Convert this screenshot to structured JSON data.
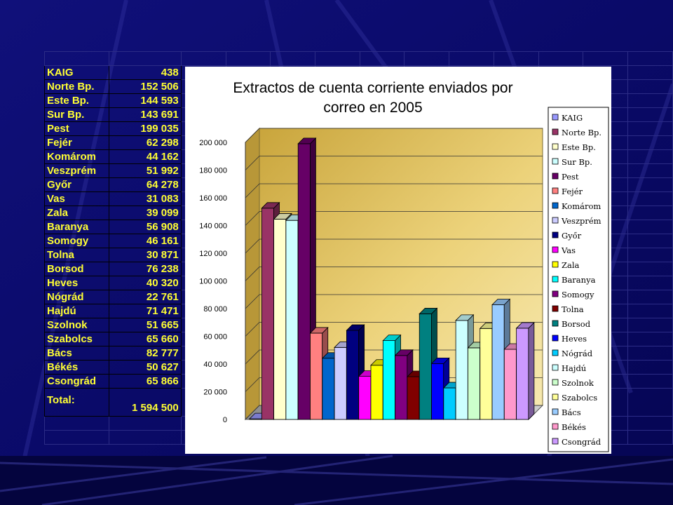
{
  "colors": {
    "background": "#06065e",
    "table_text": "#ffff33",
    "plot_wall": "#e8c95a"
  },
  "table": {
    "rows": [
      {
        "name": "KAIG",
        "value": "438"
      },
      {
        "name": "Norte  Bp.",
        "value": "152 506"
      },
      {
        "name": "Este Bp.",
        "value": "144 593"
      },
      {
        "name": "Sur Bp.",
        "value": "143 691"
      },
      {
        "name": "Pest",
        "value": "199 035"
      },
      {
        "name": "Fejér",
        "value": "62 298"
      },
      {
        "name": "Komárom",
        "value": "44 162"
      },
      {
        "name": "Veszprém",
        "value": "51 992"
      },
      {
        "name": "Győr",
        "value": "64 278"
      },
      {
        "name": "Vas",
        "value": "31 083"
      },
      {
        "name": "Zala",
        "value": "39 099"
      },
      {
        "name": "Baranya",
        "value": "56 908"
      },
      {
        "name": "Somogy",
        "value": "46 161"
      },
      {
        "name": "Tolna",
        "value": "30 871"
      },
      {
        "name": "Borsod",
        "value": "76 238"
      },
      {
        "name": "Heves",
        "value": "40 320"
      },
      {
        "name": "Nógrád",
        "value": "22 761"
      },
      {
        "name": "Hajdú",
        "value": "71 471"
      },
      {
        "name": "Szolnok",
        "value": "51 665"
      },
      {
        "name": "Szabolcs",
        "value": "65 660"
      },
      {
        "name": "Bács",
        "value": "82 777"
      },
      {
        "name": "Békés",
        "value": "50 627"
      },
      {
        "name": "Csongrád",
        "value": "65 866"
      }
    ],
    "total_label": "Total:",
    "total_value": "1 594 500"
  },
  "chart_data": {
    "type": "bar",
    "title_line1": "Extractos de cuenta corriente enviados por",
    "title_line2": "correo en  2005",
    "xlabel": "",
    "ylabel": "",
    "ylim": [
      0,
      200000
    ],
    "yticks": [
      {
        "value": 0,
        "label": "0"
      },
      {
        "value": 20000,
        "label": "20 000"
      },
      {
        "value": 40000,
        "label": "40 000"
      },
      {
        "value": 60000,
        "label": "60 000"
      },
      {
        "value": 80000,
        "label": "80 000"
      },
      {
        "value": 100000,
        "label": "100 000"
      },
      {
        "value": 120000,
        "label": "120 000"
      },
      {
        "value": 140000,
        "label": "140 000"
      },
      {
        "value": 160000,
        "label": "160 000"
      },
      {
        "value": 180000,
        "label": "180 000"
      },
      {
        "value": 200000,
        "label": "200 000"
      }
    ],
    "grid": true,
    "legend_position": "right",
    "series": [
      {
        "name": "KAIG",
        "value": 438,
        "color": "#9999ff"
      },
      {
        "name": "Norte  Bp.",
        "value": 152506,
        "color": "#993366"
      },
      {
        "name": "Este Bp.",
        "value": 144593,
        "color": "#ffffcc"
      },
      {
        "name": "Sur Bp.",
        "value": 143691,
        "color": "#ccffff"
      },
      {
        "name": "Pest",
        "value": 199035,
        "color": "#660066"
      },
      {
        "name": "Fejér",
        "value": 62298,
        "color": "#ff8080"
      },
      {
        "name": "Komárom",
        "value": 44162,
        "color": "#0066cc"
      },
      {
        "name": "Veszprém",
        "value": 51992,
        "color": "#ccccff"
      },
      {
        "name": "Győr",
        "value": 64278,
        "color": "#000080"
      },
      {
        "name": "Vas",
        "value": 31083,
        "color": "#ff00ff"
      },
      {
        "name": "Zala",
        "value": 39099,
        "color": "#ffff00"
      },
      {
        "name": "Baranya",
        "value": 56908,
        "color": "#00ffff"
      },
      {
        "name": "Somogy",
        "value": 46161,
        "color": "#800080"
      },
      {
        "name": "Tolna",
        "value": 30871,
        "color": "#800000"
      },
      {
        "name": "Borsod",
        "value": 76238,
        "color": "#008080"
      },
      {
        "name": "Heves",
        "value": 40320,
        "color": "#0000ff"
      },
      {
        "name": "Nógrád",
        "value": 22761,
        "color": "#00ccff"
      },
      {
        "name": "Hajdú",
        "value": 71471,
        "color": "#ccffff"
      },
      {
        "name": "Szolnok",
        "value": 51665,
        "color": "#ccffcc"
      },
      {
        "name": "Szabolcs",
        "value": 65660,
        "color": "#ffff99"
      },
      {
        "name": "Bács",
        "value": 82777,
        "color": "#99ccff"
      },
      {
        "name": "Békés",
        "value": 50627,
        "color": "#ff99cc"
      },
      {
        "name": "Csongrád",
        "value": 65866,
        "color": "#cc99ff"
      }
    ]
  }
}
